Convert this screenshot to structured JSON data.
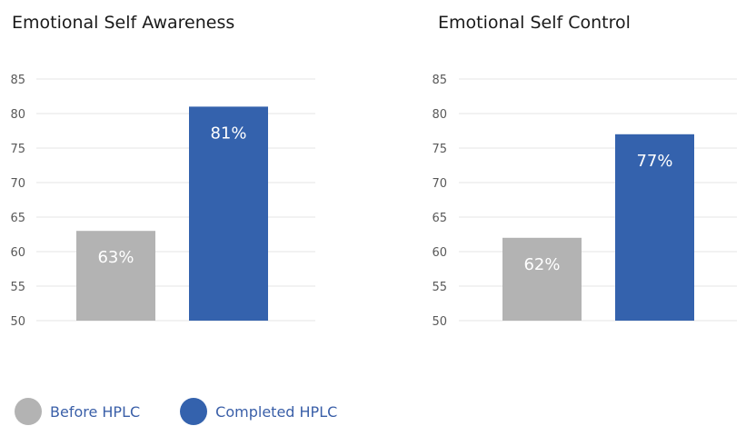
{
  "chart_data": [
    {
      "type": "bar",
      "title": "Emotional Self Awareness",
      "categories": [
        "Before HPLC",
        "Completed HPLC"
      ],
      "values": [
        63,
        81
      ],
      "value_labels": [
        "63%",
        "81%"
      ],
      "colors": [
        "#b3b3b3",
        "#3462ad"
      ],
      "ylim": [
        50,
        85
      ],
      "yticks": [
        "50",
        "55",
        "60",
        "65",
        "70",
        "75",
        "80",
        "85"
      ],
      "grid": true,
      "legend": "bottom-left"
    },
    {
      "type": "bar",
      "title": "Emotional Self Control",
      "categories": [
        "Before HPLC",
        "Completed HPLC"
      ],
      "values": [
        62,
        77
      ],
      "value_labels": [
        "62%",
        "77%"
      ],
      "colors": [
        "#b3b3b3",
        "#3462ad"
      ],
      "ylim": [
        50,
        85
      ],
      "yticks": [
        "50",
        "55",
        "60",
        "65",
        "70",
        "75",
        "80",
        "85"
      ],
      "grid": true,
      "legend": "bottom-left"
    }
  ],
  "legend": {
    "items": [
      {
        "label": "Before HPLC",
        "color": "#b3b3b3"
      },
      {
        "label": "Completed HPLC",
        "color": "#3462ad"
      }
    ]
  }
}
